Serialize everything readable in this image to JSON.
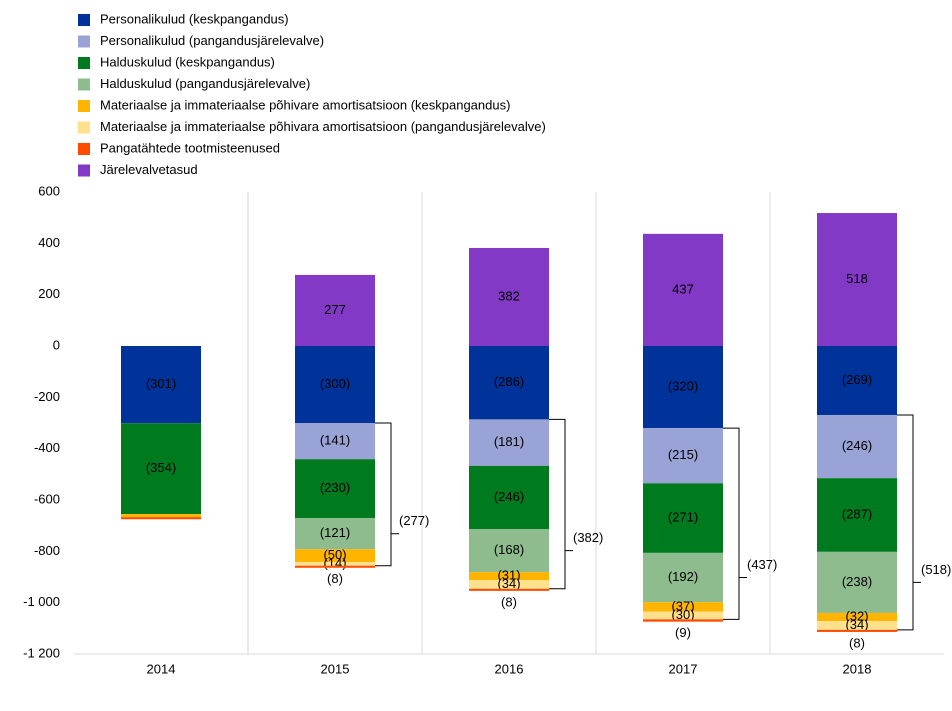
{
  "chart_data": {
    "type": "stacked_bar",
    "categories": [
      "2014",
      "2015",
      "2016",
      "2017",
      "2018"
    ],
    "ylim": [
      -1200,
      600
    ],
    "yticks": [
      {
        "value": -1200,
        "label": "-1 200"
      },
      {
        "value": -1000,
        "label": "-1 000"
      },
      -800,
      -600,
      -400,
      -200,
      0,
      200,
      400,
      600
    ],
    "grid": "x",
    "legend": "top-left",
    "series": [
      {
        "name": "Personalikulud (keskpangandus)",
        "color": "#003399",
        "values": [
          -301,
          -300,
          -286,
          -320,
          -269
        ],
        "value_labels": [
          "(301)",
          "(300)",
          "(286)",
          "(320)",
          "(269)"
        ]
      },
      {
        "name": "Personalikulud (pangandusjärelevalve)",
        "color": "#99a3d6",
        "values": [
          null,
          -141,
          -181,
          -215,
          -246
        ],
        "value_labels": [
          null,
          "(141)",
          "(181)",
          "(215)",
          "(246)"
        ]
      },
      {
        "name": "Halduskulud (keskpangandus)",
        "color": "#007a1f",
        "values": [
          -354,
          -230,
          -246,
          -271,
          -287
        ],
        "value_labels": [
          "(354)",
          "(230)",
          "(246)",
          "(271)",
          "(287)"
        ]
      },
      {
        "name": "Halduskulud (pangandusjärelevalve)",
        "color": "#8fbc8f",
        "values": [
          null,
          -121,
          -168,
          -192,
          -238
        ],
        "value_labels": [
          null,
          "(121)",
          "(168)",
          "(192)",
          "(238)"
        ]
      },
      {
        "name": "Materiaalse ja immateriaalse põhivare amortisatsioon (keskpangandus)",
        "color": "#ffb400",
        "values": [
          -12,
          -50,
          -31,
          -37,
          -32
        ],
        "value_labels": [
          null,
          "(50)",
          "(31)",
          "(37)",
          "(32)"
        ]
      },
      {
        "name": "Materiaalse ja immateriaalse põhivara amortisatsioon (pangandusjärelevalve)",
        "color": "#ffe08c",
        "values": [
          null,
          -14,
          -34,
          -30,
          -34
        ],
        "value_labels": [
          null,
          "(14)",
          "(34)",
          "(30)",
          "(34)"
        ]
      },
      {
        "name": "Pangatähtede tootmisteenused",
        "color": "#ff4b00",
        "values": [
          -8,
          -8,
          -8,
          -9,
          -8
        ],
        "value_labels": [
          null,
          "(8)",
          "(8)",
          "(9)",
          "(8)"
        ]
      },
      {
        "name": "Järelevalvetasud",
        "color": "#8139c6",
        "values": [
          null,
          277,
          382,
          437,
          518
        ]
      }
    ],
    "bracket_values": [
      null,
      -277,
      -382,
      -437,
      -518
    ],
    "bracket_labels": [
      null,
      "(277)",
      "(382)",
      "(437)",
      "(518)"
    ]
  }
}
